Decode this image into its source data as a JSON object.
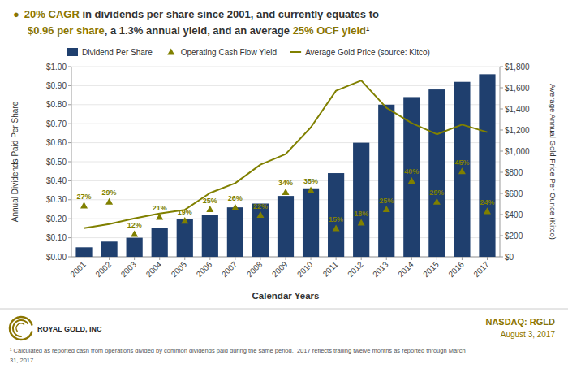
{
  "chart_data": {
    "type": "bar",
    "title": [
      {
        "text": "●",
        "color": "#8B7500"
      },
      {
        "text": "20% CAGR",
        "color": "#8B7500"
      },
      {
        "text": " in dividends per share since 2001, and currently equates to",
        "color": "#333333"
      }
    ],
    "subtitle": [
      {
        "text": "$0.96 per share",
        "color": "#8B7500"
      },
      {
        "text": ", a 1.3% annual yield",
        "color": "#333333"
      },
      {
        "text": ", and an average ",
        "color": "#333333"
      },
      {
        "text": "25% OCF yield",
        "color": "#8B7500"
      },
      {
        "text": "¹",
        "color": "#333333"
      }
    ],
    "xlabel": "Calendar Years",
    "ylabel": "Annual Dividends Paid Per Share",
    "y2label": "Average Annual Gold Price Per Ounce (Kitco)",
    "categories": [
      "2001",
      "2002",
      "2003",
      "2004",
      "2005",
      "2006",
      "2007",
      "2008",
      "2009",
      "2010",
      "2011",
      "2012",
      "2013",
      "2014",
      "2015",
      "2016",
      "2017"
    ],
    "series": [
      {
        "name": "Dividend Per Share",
        "type": "bar",
        "color": "#1F3F6E",
        "values": [
          0.05,
          0.08,
          0.1,
          0.15,
          0.2,
          0.22,
          0.26,
          0.28,
          0.32,
          0.36,
          0.44,
          0.6,
          0.8,
          0.84,
          0.88,
          0.92,
          0.96
        ]
      },
      {
        "name": "Operating Cash Flow Yield",
        "type": "scatter",
        "marker": "triangle",
        "color": "#808000",
        "data_labels": true,
        "values": [
          0.27,
          0.29,
          0.12,
          0.21,
          0.19,
          0.25,
          0.26,
          0.22,
          0.34,
          0.35,
          0.15,
          0.18,
          0.25,
          0.4,
          0.29,
          0.45,
          0.24
        ],
        "value_labels": [
          "27%",
          "29%",
          "12%",
          "21%",
          "19%",
          "25%",
          "26%",
          "22%",
          "34%",
          "35%",
          "15%",
          "18%",
          "25%",
          "40%",
          "29%",
          "45%",
          "24%"
        ]
      },
      {
        "name": "Average Gold Price (source: Kitco)",
        "type": "line",
        "color": "#808000",
        "axis": "y2",
        "values": [
          271,
          310,
          364,
          409,
          445,
          604,
          697,
          872,
          972,
          1225,
          1572,
          1668,
          1411,
          1266,
          1160,
          1251,
          1180
        ]
      }
    ],
    "ylim": [
      0,
      1.0
    ],
    "yticks": [
      {
        "value": 0.0,
        "label": "$0.00"
      },
      {
        "value": 0.1,
        "label": "$0.10"
      },
      {
        "value": 0.2,
        "label": "$0.20"
      },
      {
        "value": 0.3,
        "label": "$0.30"
      },
      {
        "value": 0.4,
        "label": "$0.40"
      },
      {
        "value": 0.5,
        "label": "$0.50"
      },
      {
        "value": 0.6,
        "label": "$0.60"
      },
      {
        "value": 0.7,
        "label": "$0.70"
      },
      {
        "value": 0.8,
        "label": "$0.80"
      },
      {
        "value": 0.9,
        "label": "$0.90"
      },
      {
        "value": 1.0,
        "label": "$1.00"
      }
    ],
    "y2lim": [
      0,
      1800
    ],
    "y2ticks": [
      {
        "value": 0,
        "label": "$0"
      },
      {
        "value": 200,
        "label": "$200"
      },
      {
        "value": 400,
        "label": "$400"
      },
      {
        "value": 600,
        "label": "$600"
      },
      {
        "value": 800,
        "label": "$800"
      },
      {
        "value": 1000,
        "label": "$1,000"
      },
      {
        "value": 1200,
        "label": "$1,200"
      },
      {
        "value": 1400,
        "label": "$1,400"
      },
      {
        "value": 1600,
        "label": "$1,600"
      },
      {
        "value": 1800,
        "label": "$1,800"
      }
    ],
    "grid": true,
    "legend": "upper left",
    "annotations": [
      {
        "text": "¹ Calculated as reported cash from operations divided by common dividends paid during the same period.  2017 reflects trailing twelve months as reported through March",
        "color": "#555555"
      },
      {
        "text": "31, 2017.",
        "color": "#555555"
      },
      {
        "text": "NASDAQ: RGLD",
        "color": "#8B7500"
      },
      {
        "text": "August 3, 2017",
        "color": "#8B7500"
      },
      {
        "text": "ROYAL GOLD, INC",
        "color": "#2B2B2B"
      }
    ]
  }
}
